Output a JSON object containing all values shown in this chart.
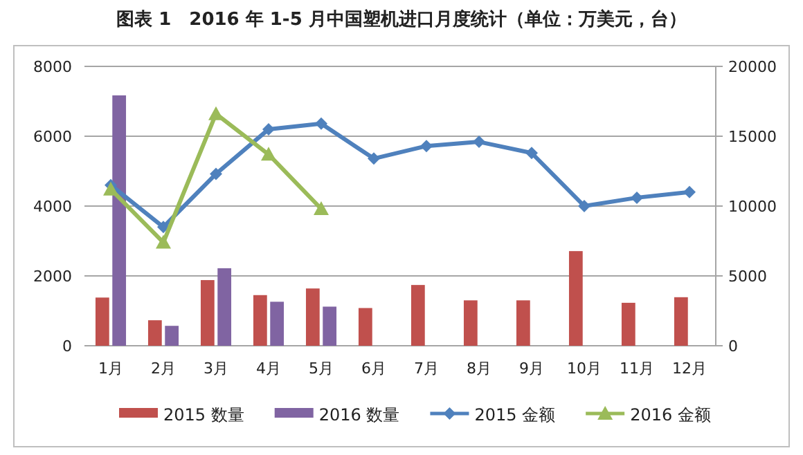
{
  "chart_data": {
    "type": "bar",
    "title": "图表 1　2016 年 1-5 月中国塑机进口月度统计（单位：万美元，台）",
    "categories": [
      "1月",
      "2月",
      "3月",
      "4月",
      "5月",
      "6月",
      "7月",
      "8月",
      "9月",
      "10月",
      "11月",
      "12月"
    ],
    "series": [
      {
        "name": "2015 数量",
        "color": "#c0504d",
        "values": [
          1380,
          730,
          1880,
          1450,
          1640,
          1080,
          1740,
          1300,
          1300,
          2710,
          1230,
          1390
        ]
      },
      {
        "name": "2016 数量",
        "color": "#8064a2",
        "values": [
          7170,
          570,
          2220,
          1260,
          1120,
          null,
          null,
          null,
          null,
          null,
          null,
          null
        ]
      },
      {
        "name": "2015 金额",
        "type": "line",
        "axis": "y2",
        "marker": "diamond",
        "color": "#4f81bd",
        "values": [
          11500,
          8500,
          12300,
          15500,
          15900,
          13400,
          14300,
          14600,
          13800,
          10000,
          10600,
          11000
        ]
      },
      {
        "name": "2016 金额",
        "type": "line",
        "axis": "y2",
        "marker": "triangle",
        "color": "#9bbb59",
        "values": [
          11200,
          7400,
          16600,
          13700,
          9800,
          null,
          null,
          null,
          null,
          null,
          null,
          null
        ]
      }
    ],
    "ylim": [
      0,
      8000
    ],
    "yticks": [
      0,
      2000,
      4000,
      6000,
      8000
    ],
    "y2lim": [
      0,
      20000
    ],
    "y2ticks": [
      0,
      5000,
      10000,
      15000,
      20000
    ],
    "grid": "y",
    "legend": "bottom"
  }
}
